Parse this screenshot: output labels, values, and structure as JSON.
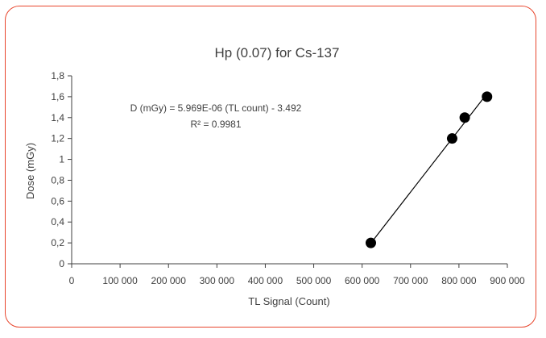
{
  "chart_data": {
    "type": "scatter",
    "title": "Hp (0.07) for Cs-137",
    "xlabel": "TL Signal (Count)",
    "ylabel": "Dose (mGy)",
    "xlim": [
      0,
      900000
    ],
    "ylim": [
      0,
      1.8
    ],
    "x_ticks": [
      0,
      100000,
      200000,
      300000,
      400000,
      500000,
      600000,
      700000,
      800000,
      900000
    ],
    "x_tick_labels": [
      "0",
      "100 000",
      "200 000",
      "300 000",
      "400 000",
      "500 000",
      "600 000",
      "700 000",
      "800 000",
      "900 000"
    ],
    "y_ticks": [
      0,
      0.2,
      0.4,
      0.6,
      0.8,
      1.0,
      1.2,
      1.4,
      1.6,
      1.8
    ],
    "y_tick_labels": [
      "0",
      "0,2",
      "0,4",
      "0,6",
      "0,8",
      "1",
      "1,2",
      "1,4",
      "1,6",
      "1,8"
    ],
    "points": [
      {
        "x": 618000,
        "y": 0.2
      },
      {
        "x": 786000,
        "y": 1.2
      },
      {
        "x": 812000,
        "y": 1.4
      },
      {
        "x": 858000,
        "y": 1.6
      }
    ],
    "trendline": {
      "slope": 5.969e-06,
      "intercept": -3.492,
      "x_range": [
        618000,
        858000
      ]
    },
    "equation_text": "D (mGy) = 5.969E-06 (TL count) - 3.492",
    "r2_text": "R² = 0.9981",
    "grid": false,
    "colors": {
      "marker": "#000000",
      "line": "#000000",
      "axis": "#404040",
      "frame": "#e8462d"
    }
  }
}
